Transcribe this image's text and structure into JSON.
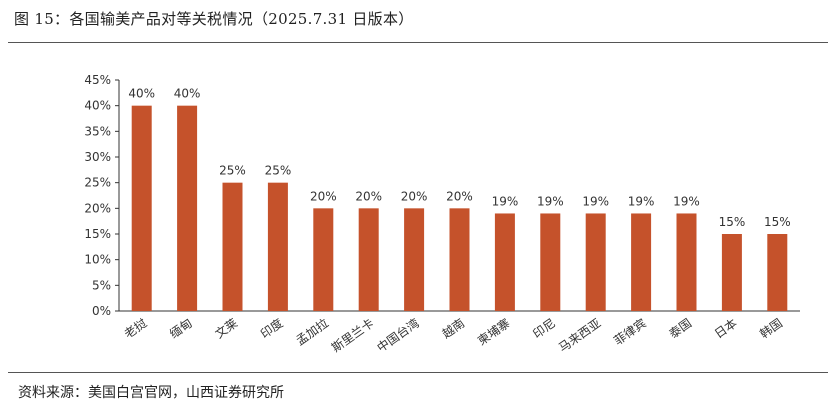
{
  "title": "图 15：各国输美产品对等关税情况（2025.7.31 日版本）",
  "source": "资料来源：美国白宫官网，山西证券研究所",
  "chart_data": {
    "type": "bar",
    "categories": [
      "老挝",
      "缅甸",
      "文莱",
      "印度",
      "孟加拉",
      "斯里兰卡",
      "中国台湾",
      "越南",
      "柬埔寨",
      "印尼",
      "马来西亚",
      "菲律宾",
      "泰国",
      "日本",
      "韩国"
    ],
    "values": [
      40,
      40,
      25,
      25,
      20,
      20,
      20,
      20,
      19,
      19,
      19,
      19,
      19,
      15,
      15
    ],
    "data_labels": [
      "40%",
      "40%",
      "25%",
      "25%",
      "20%",
      "20%",
      "20%",
      "20%",
      "19%",
      "19%",
      "19%",
      "19%",
      "19%",
      "15%",
      "15%"
    ],
    "yticks": [
      "0%",
      "5%",
      "10%",
      "15%",
      "20%",
      "25%",
      "30%",
      "35%",
      "40%",
      "45%"
    ],
    "ylim": [
      0,
      45
    ],
    "bar_color": "#C5522B",
    "grid": false,
    "legend": "none"
  }
}
